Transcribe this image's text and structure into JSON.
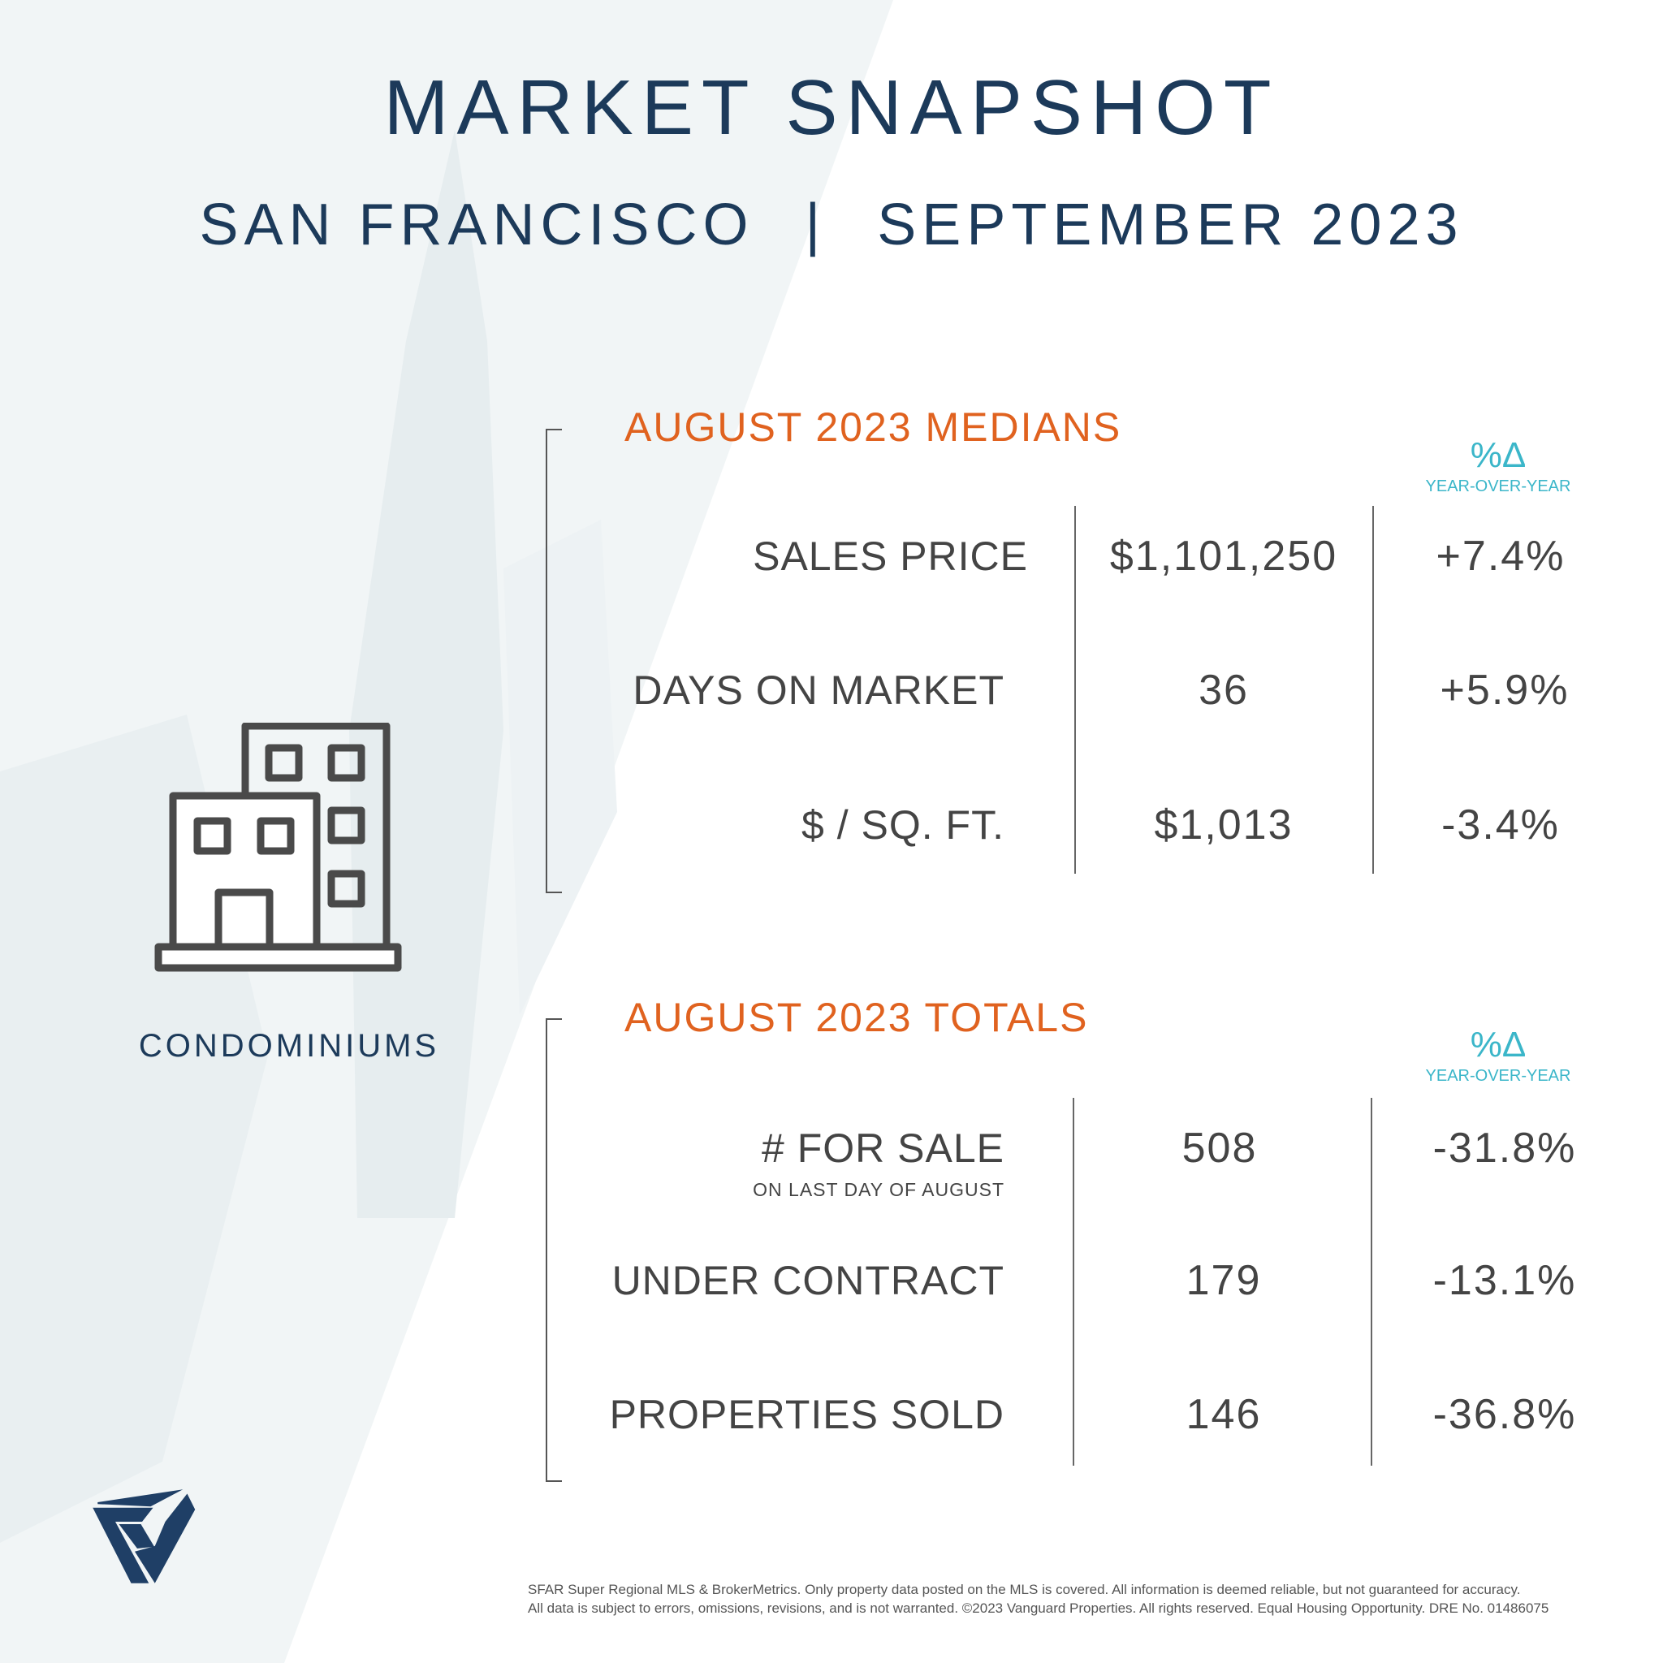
{
  "header": {
    "title": "MARKET SNAPSHOT",
    "city": "SAN FRANCISCO",
    "separator": "|",
    "period": "SEPTEMBER 2023"
  },
  "property_type": {
    "label": "CONDOMINIUMS",
    "icon": "condo-building-icon"
  },
  "medians": {
    "heading": "AUGUST 2023 MEDIANS",
    "delta_symbol": "%Δ",
    "delta_label": "YEAR-OVER-YEAR",
    "rows": [
      {
        "label": "SALES PRICE",
        "value": "$1,101,250",
        "change": "+7.4%"
      },
      {
        "label": "DAYS ON MARKET",
        "value": "36",
        "change": "+5.9%"
      },
      {
        "label": "$ / SQ. FT.",
        "value": "$1,013",
        "change": "-3.4%"
      }
    ]
  },
  "totals": {
    "heading": "AUGUST 2023 TOTALS",
    "delta_symbol": "%Δ",
    "delta_label": "YEAR-OVER-YEAR",
    "rows": [
      {
        "label": "# FOR SALE",
        "sublabel": "ON LAST DAY OF AUGUST",
        "value": "508",
        "change": "-31.8%"
      },
      {
        "label": "UNDER CONTRACT",
        "value": "179",
        "change": "-13.1%"
      },
      {
        "label": "PROPERTIES SOLD",
        "value": "146",
        "change": "-36.8%"
      }
    ]
  },
  "footer": {
    "line1": "SFAR Super Regional MLS & BrokerMetrics. Only property data posted on the MLS is covered. All information is deemed reliable, but not guaranteed for accuracy.",
    "line2": "All data is subject to errors, omissions, revisions, and is not warranted. ©2023 Vanguard Properties. All rights reserved. Equal Housing Opportunity. DRE No. 01486075"
  },
  "colors": {
    "navy": "#1c3a5a",
    "orange": "#e0621f",
    "teal": "#3bb6c9",
    "logo": "#1f3f66"
  }
}
